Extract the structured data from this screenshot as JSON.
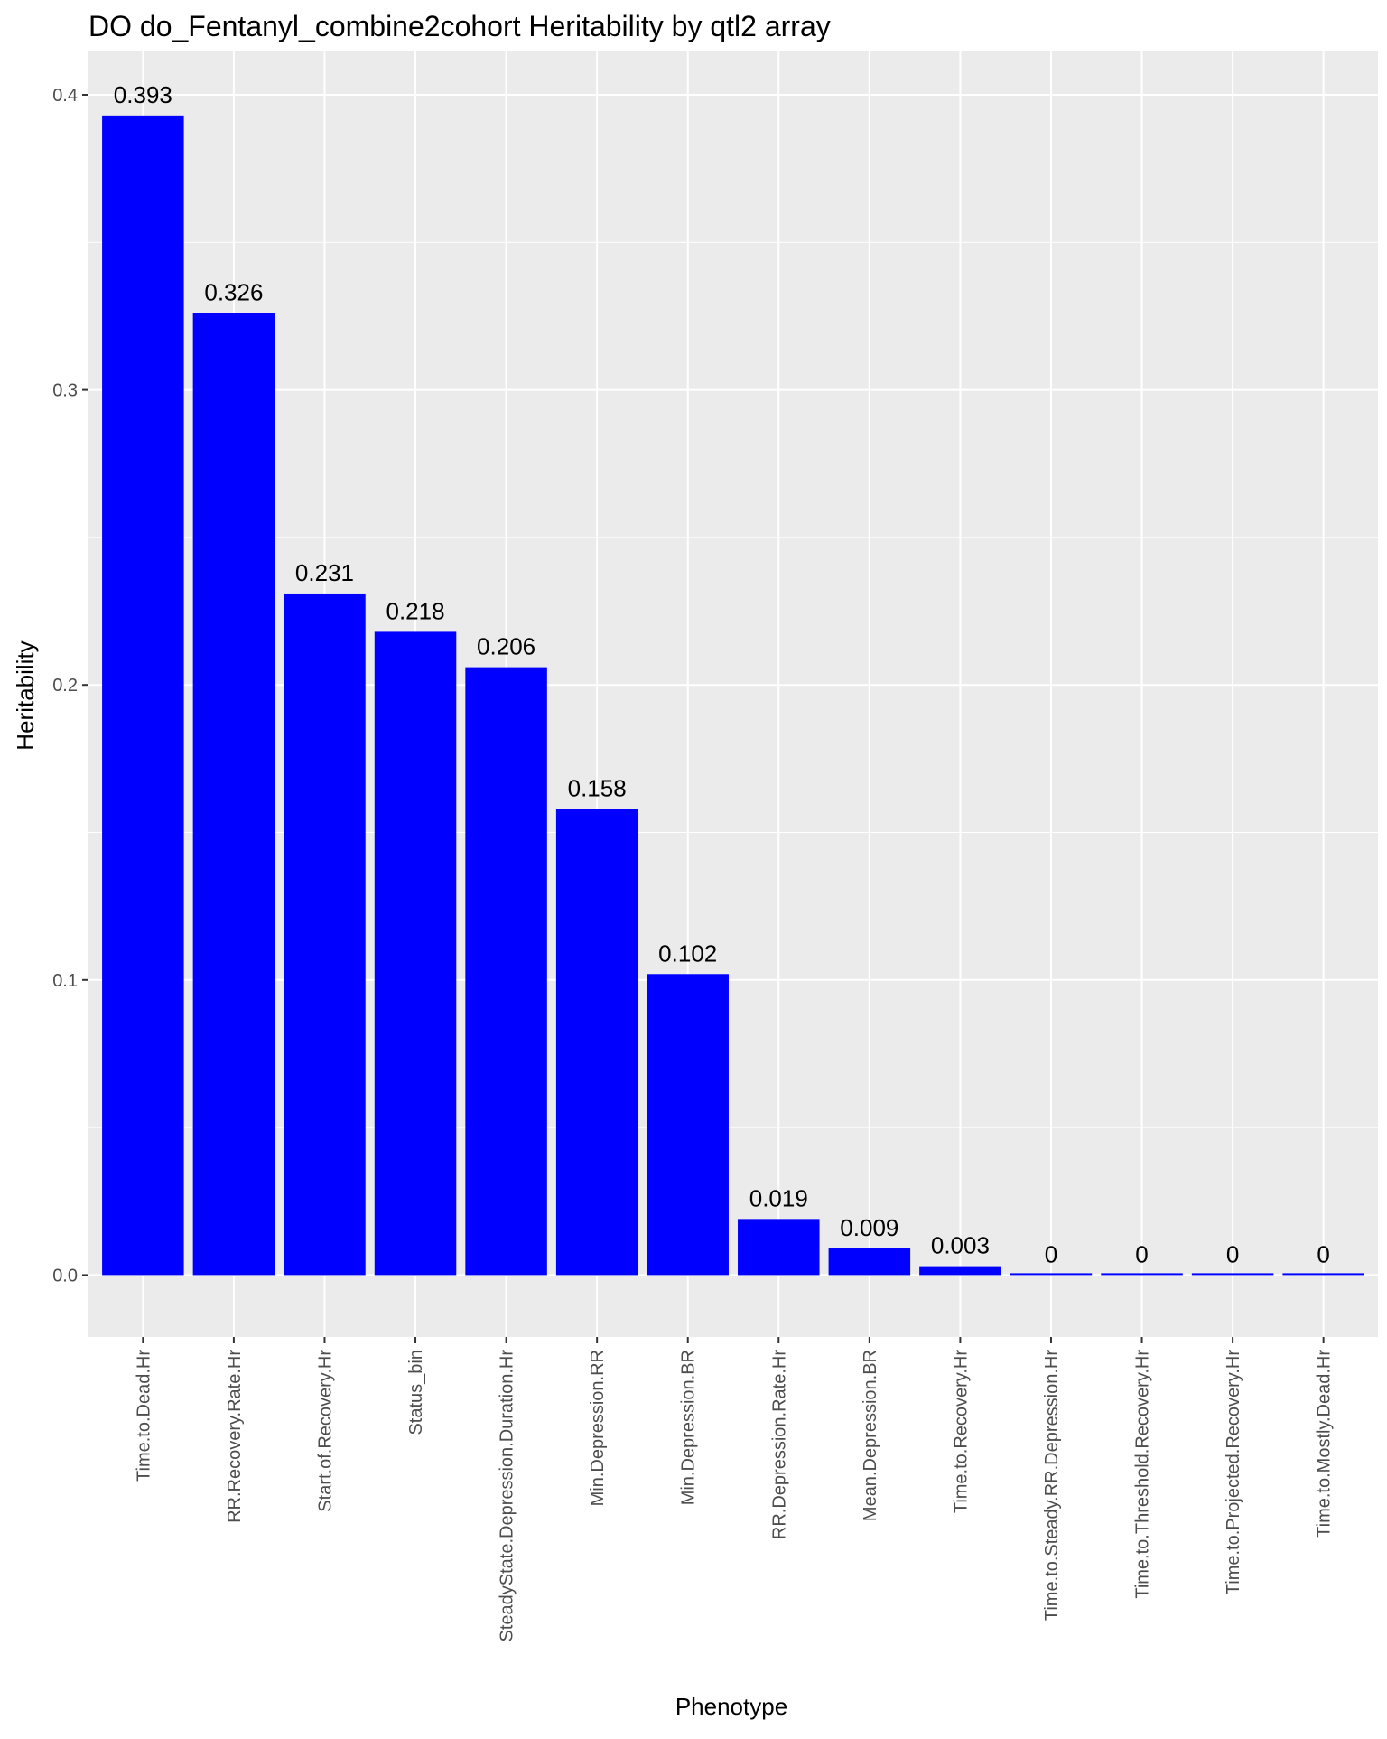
{
  "chart_data": {
    "type": "bar",
    "title": "DO do_Fentanyl_combine2cohort Heritability by qtl2 array",
    "xlabel": "Phenotype",
    "ylabel": "Heritability",
    "categories": [
      "Time.to.Dead.Hr",
      "RR.Recovery.Rate.Hr",
      "Start.of.Recovery.Hr",
      "Status_bin",
      "SteadyState.Depression.Duration.Hr",
      "Min.Depression.RR",
      "Min.Depression.BR",
      "RR.Depression.Rate.Hr",
      "Mean.Depression.BR",
      "Time.to.Recovery.Hr",
      "Time.to.Steady.RR.Depression.Hr",
      "Time.to.Threshold.Recovery.Hr",
      "Time.to.Projected.Recovery.Hr",
      "Time.to.Mostly.Dead.Hr"
    ],
    "values": [
      0.393,
      0.326,
      0.231,
      0.218,
      0.206,
      0.158,
      0.102,
      0.019,
      0.009,
      0.003,
      0,
      0,
      0,
      0
    ],
    "data_labels": [
      "0.393",
      "0.326",
      "0.231",
      "0.218",
      "0.206",
      "0.158",
      "0.102",
      "0.019",
      "0.009",
      "0.003",
      "0",
      "0",
      "0",
      "0"
    ],
    "yticks": [
      0.0,
      0.1,
      0.2,
      0.3,
      0.4
    ],
    "ytick_labels": [
      "0.0",
      "0.1",
      "0.2",
      "0.3",
      "0.4"
    ],
    "ylim": [
      -0.021,
      0.415
    ],
    "grid": true,
    "legend": "none",
    "colors": {
      "bar": "#0000ff",
      "panel": "#ebebeb",
      "gridline": "#ffffff",
      "text": "#000000",
      "tick_text": "#4d4d4d",
      "tick_mark": "#333333"
    }
  }
}
